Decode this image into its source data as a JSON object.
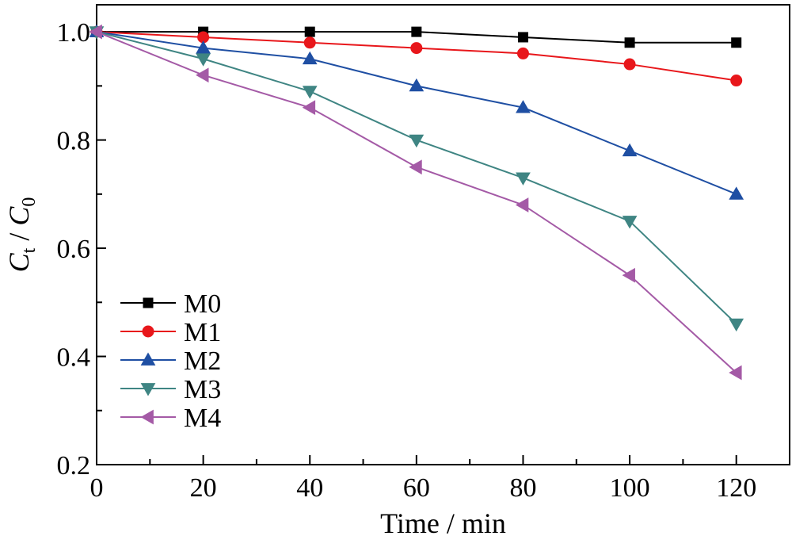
{
  "chart_data": {
    "type": "line",
    "xlabel": "Time / min",
    "ylabel_main": "C",
    "ylabel_sub_num": "t",
    "ylabel_sep": " / ",
    "ylabel_main2": "C",
    "ylabel_sub_den": "0",
    "xlim": [
      0,
      130
    ],
    "ylim": [
      0.2,
      1.05
    ],
    "xticks": [
      0,
      20,
      40,
      60,
      80,
      100,
      120
    ],
    "xtick_labels": [
      "0",
      "20",
      "40",
      "60",
      "80",
      "100",
      "120"
    ],
    "yticks": [
      0.2,
      0.4,
      0.6,
      0.8,
      1.0
    ],
    "ytick_labels": [
      "0.2",
      "0.4",
      "0.6",
      "0.8",
      "1.0"
    ],
    "x": [
      0,
      20,
      40,
      60,
      80,
      100,
      120
    ],
    "grid": false,
    "legend_position": "bottom-left",
    "series": [
      {
        "name": "M0",
        "color": "#000000",
        "marker": "square",
        "values": [
          1.0,
          1.0,
          1.0,
          1.0,
          0.99,
          0.98,
          0.98
        ]
      },
      {
        "name": "M1",
        "color": "#e8171b",
        "marker": "circle",
        "values": [
          1.0,
          0.99,
          0.98,
          0.97,
          0.96,
          0.94,
          0.91
        ]
      },
      {
        "name": "M2",
        "color": "#1f4fa3",
        "marker": "triangle-up",
        "values": [
          1.0,
          0.97,
          0.95,
          0.9,
          0.86,
          0.78,
          0.7
        ]
      },
      {
        "name": "M3",
        "color": "#3f8583",
        "marker": "triangle-down",
        "values": [
          1.0,
          0.95,
          0.89,
          0.8,
          0.73,
          0.65,
          0.46
        ]
      },
      {
        "name": "M4",
        "color": "#a45aa6",
        "marker": "triangle-left",
        "values": [
          1.0,
          0.92,
          0.86,
          0.75,
          0.68,
          0.55,
          0.37
        ]
      }
    ]
  }
}
